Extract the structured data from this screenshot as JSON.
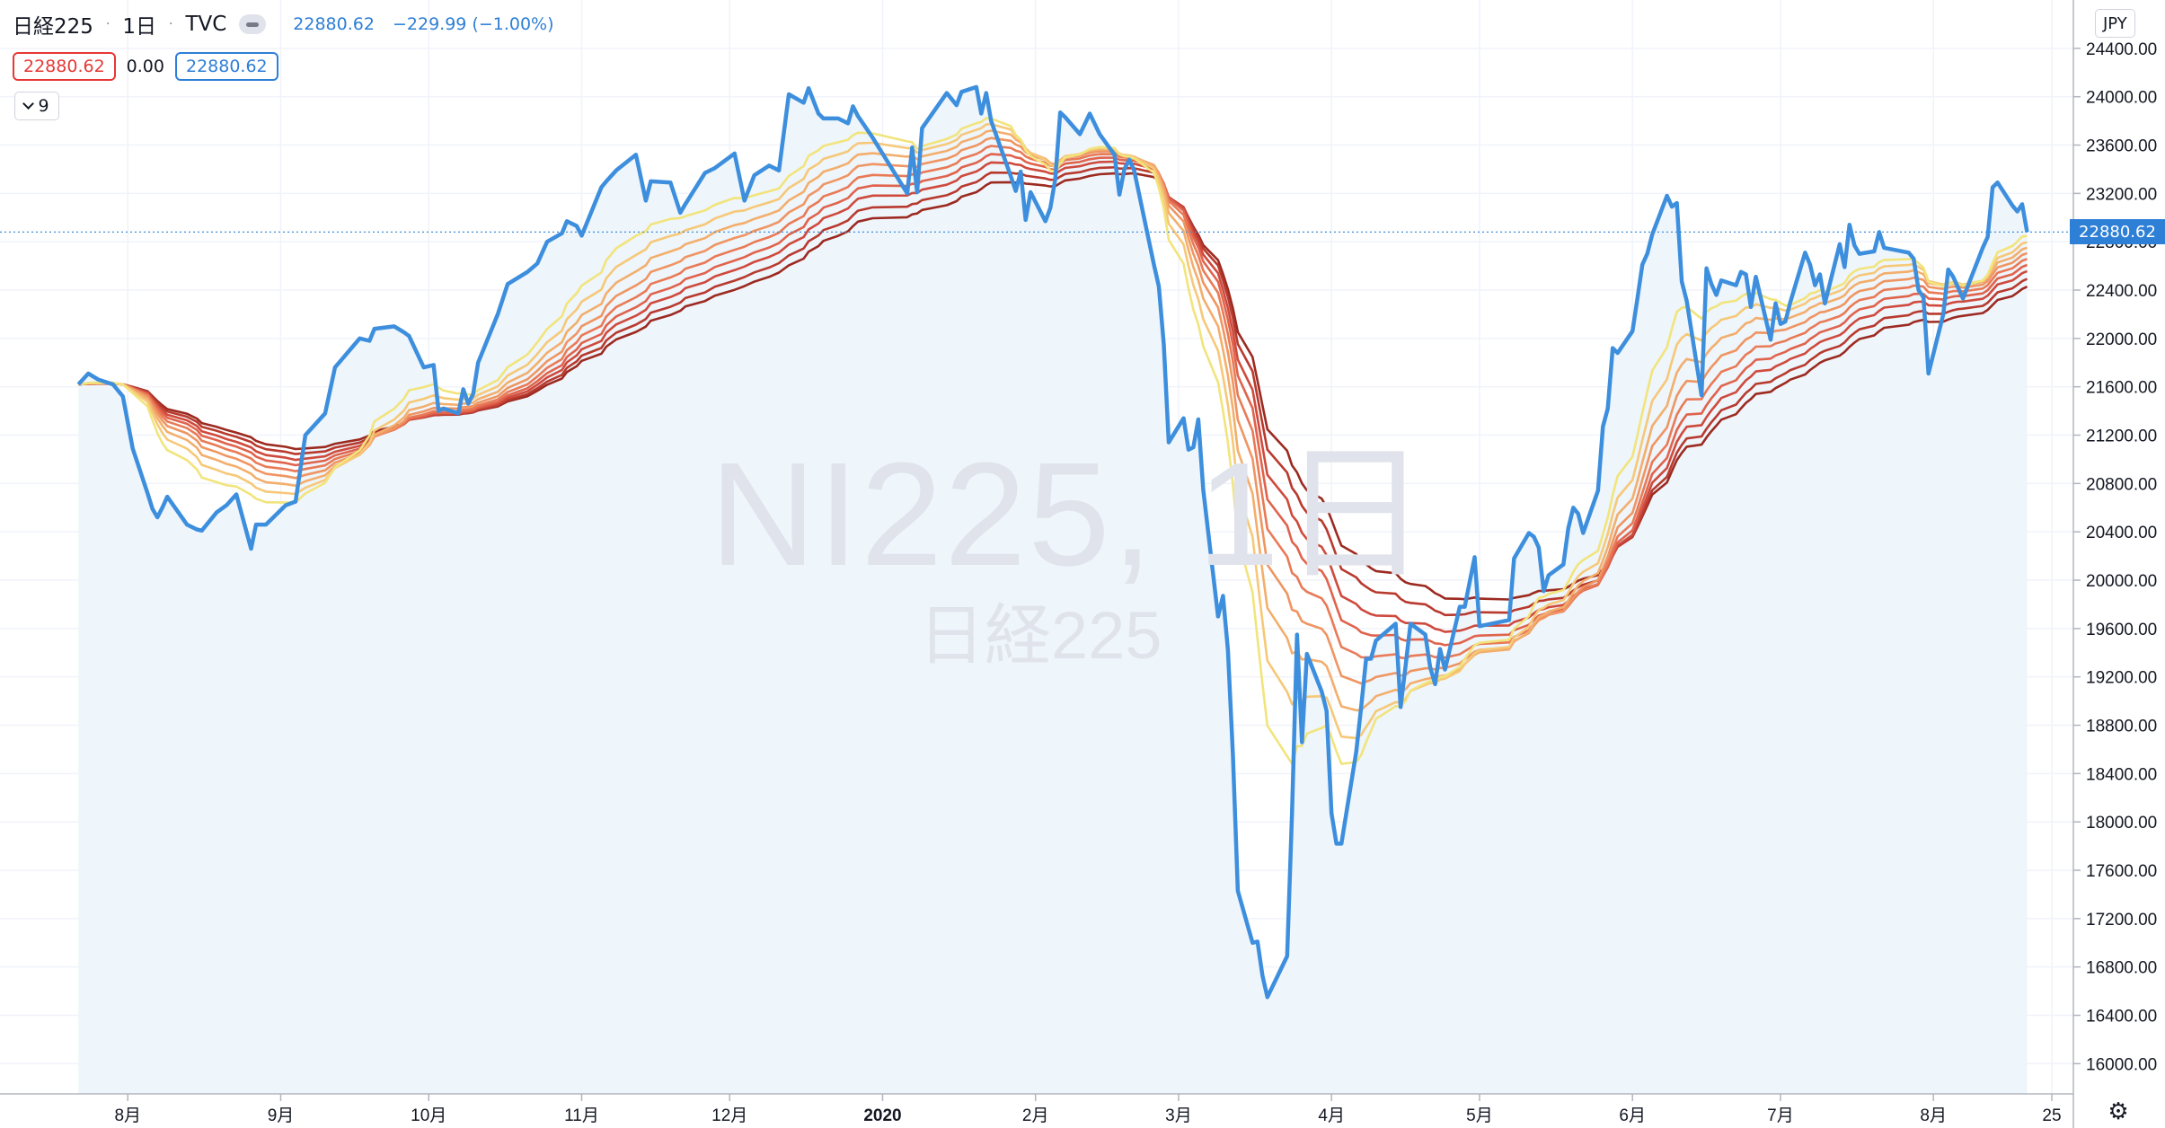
{
  "legend": {
    "symbol": "日経225",
    "interval": "1日",
    "exchange": "TVC",
    "last_price": "22880.62",
    "change": "−229.99 (−1.00%)",
    "indicator_values": [
      "22880.62",
      "0.00",
      "22880.62"
    ],
    "indicator_count": "9"
  },
  "watermark": {
    "main": "NI225, 1日",
    "sub": "日経225"
  },
  "currency": "JPY",
  "price_tag": "22880.62",
  "icons": {
    "eye": "eye-icon",
    "collapse": "chevron-down-icon",
    "settings": "gear-icon"
  },
  "colors": {
    "price_line": "#3d8fde",
    "area_fill": "#eef5fb",
    "ribbon": [
      "#f2e47c",
      "#f6c878",
      "#f3ae6c",
      "#ef9562",
      "#e97a56",
      "#e0634c",
      "#cf4a3d",
      "#b83a2e",
      "#9c2a20"
    ]
  },
  "chart_data": {
    "type": "line",
    "title": "",
    "x_ticks": [
      "8月",
      "9月",
      "10月",
      "11月",
      "12月",
      "2020",
      "2月",
      "3月",
      "4月",
      "5月",
      "6月",
      "7月",
      "8月",
      "25"
    ],
    "y_ticks": [
      16000,
      16400,
      16800,
      17200,
      17600,
      18000,
      18400,
      18800,
      19200,
      19600,
      20000,
      20400,
      20800,
      21200,
      21600,
      22000,
      22400,
      22800,
      23200,
      23600,
      24000,
      24400
    ],
    "ylim": [
      15750,
      24800
    ],
    "grid": true,
    "series": [
      {
        "name": "日経225",
        "points": [
          [
            "2019-07-22",
            21620
          ],
          [
            "2019-07-24",
            21710
          ],
          [
            "2019-07-26",
            21660
          ],
          [
            "2019-07-29",
            21620
          ],
          [
            "2019-07-31",
            21520
          ],
          [
            "2019-08-02",
            21090
          ],
          [
            "2019-08-05",
            20720
          ],
          [
            "2019-08-06",
            20590
          ],
          [
            "2019-08-07",
            20520
          ],
          [
            "2019-08-08",
            20600
          ],
          [
            "2019-08-09",
            20690
          ],
          [
            "2019-08-13",
            20460
          ],
          [
            "2019-08-15",
            20420
          ],
          [
            "2019-08-16",
            20410
          ],
          [
            "2019-08-19",
            20560
          ],
          [
            "2019-08-21",
            20620
          ],
          [
            "2019-08-23",
            20710
          ],
          [
            "2019-08-26",
            20260
          ],
          [
            "2019-08-27",
            20460
          ],
          [
            "2019-08-29",
            20460
          ],
          [
            "2019-09-02",
            20620
          ],
          [
            "2019-09-04",
            20650
          ],
          [
            "2019-09-06",
            21200
          ],
          [
            "2019-09-10",
            21380
          ],
          [
            "2019-09-12",
            21760
          ],
          [
            "2019-09-17",
            22000
          ],
          [
            "2019-09-19",
            21980
          ],
          [
            "2019-09-20",
            22080
          ],
          [
            "2019-09-24",
            22100
          ],
          [
            "2019-09-26",
            22050
          ],
          [
            "2019-09-27",
            22020
          ],
          [
            "2019-09-30",
            21760
          ],
          [
            "2019-10-02",
            21780
          ],
          [
            "2019-10-03",
            21400
          ],
          [
            "2019-10-04",
            21420
          ],
          [
            "2019-10-07",
            21380
          ],
          [
            "2019-10-08",
            21580
          ],
          [
            "2019-10-09",
            21460
          ],
          [
            "2019-10-10",
            21540
          ],
          [
            "2019-10-11",
            21800
          ],
          [
            "2019-10-15",
            22200
          ],
          [
            "2019-10-17",
            22450
          ],
          [
            "2019-10-21",
            22550
          ],
          [
            "2019-10-23",
            22620
          ],
          [
            "2019-10-25",
            22800
          ],
          [
            "2019-10-28",
            22870
          ],
          [
            "2019-10-29",
            22970
          ],
          [
            "2019-10-31",
            22930
          ],
          [
            "2019-11-01",
            22850
          ],
          [
            "2019-11-05",
            23250
          ],
          [
            "2019-11-06",
            23300
          ],
          [
            "2019-11-08",
            23390
          ],
          [
            "2019-11-12",
            23520
          ],
          [
            "2019-11-14",
            23140
          ],
          [
            "2019-11-15",
            23300
          ],
          [
            "2019-11-19",
            23290
          ],
          [
            "2019-11-21",
            23040
          ],
          [
            "2019-11-22",
            23110
          ],
          [
            "2019-11-26",
            23370
          ],
          [
            "2019-11-28",
            23410
          ],
          [
            "2019-12-02",
            23530
          ],
          [
            "2019-12-04",
            23140
          ],
          [
            "2019-12-06",
            23350
          ],
          [
            "2019-12-09",
            23430
          ],
          [
            "2019-12-11",
            23390
          ],
          [
            "2019-12-13",
            24020
          ],
          [
            "2019-12-16",
            23950
          ],
          [
            "2019-12-17",
            24070
          ],
          [
            "2019-12-19",
            23860
          ],
          [
            "2019-12-20",
            23820
          ],
          [
            "2019-12-23",
            23820
          ],
          [
            "2019-12-25",
            23780
          ],
          [
            "2019-12-26",
            23920
          ],
          [
            "2019-12-27",
            23840
          ],
          [
            "2019-12-30",
            23660
          ],
          [
            "2020-01-06",
            23200
          ],
          [
            "2020-01-07",
            23580
          ],
          [
            "2020-01-08",
            23210
          ],
          [
            "2020-01-09",
            23740
          ],
          [
            "2020-01-14",
            24030
          ],
          [
            "2020-01-16",
            23930
          ],
          [
            "2020-01-17",
            24040
          ],
          [
            "2020-01-20",
            24080
          ],
          [
            "2020-01-21",
            23860
          ],
          [
            "2020-01-22",
            24030
          ],
          [
            "2020-01-23",
            23800
          ],
          [
            "2020-01-27",
            23340
          ],
          [
            "2020-01-28",
            23220
          ],
          [
            "2020-01-29",
            23380
          ],
          [
            "2020-01-30",
            22980
          ],
          [
            "2020-01-31",
            23210
          ],
          [
            "2020-02-03",
            22970
          ],
          [
            "2020-02-04",
            23080
          ],
          [
            "2020-02-05",
            23320
          ],
          [
            "2020-02-06",
            23870
          ],
          [
            "2020-02-07",
            23830
          ],
          [
            "2020-02-10",
            23690
          ],
          [
            "2020-02-12",
            23860
          ],
          [
            "2020-02-14",
            23690
          ],
          [
            "2020-02-17",
            23520
          ],
          [
            "2020-02-18",
            23190
          ],
          [
            "2020-02-19",
            23400
          ],
          [
            "2020-02-20",
            23480
          ],
          [
            "2020-02-21",
            23390
          ],
          [
            "2020-02-25",
            22610
          ],
          [
            "2020-02-26",
            22430
          ],
          [
            "2020-02-27",
            21950
          ],
          [
            "2020-02-28",
            21140
          ],
          [
            "2020-03-02",
            21340
          ],
          [
            "2020-03-03",
            21080
          ],
          [
            "2020-03-04",
            21100
          ],
          [
            "2020-03-05",
            21330
          ],
          [
            "2020-03-06",
            20750
          ],
          [
            "2020-03-09",
            19700
          ],
          [
            "2020-03-10",
            19870
          ],
          [
            "2020-03-11",
            19420
          ],
          [
            "2020-03-12",
            18560
          ],
          [
            "2020-03-13",
            17430
          ],
          [
            "2020-03-16",
            17000
          ],
          [
            "2020-03-17",
            17010
          ],
          [
            "2020-03-18",
            16730
          ],
          [
            "2020-03-19",
            16550
          ],
          [
            "2020-03-23",
            16890
          ],
          [
            "2020-03-24",
            18090
          ],
          [
            "2020-03-25",
            19550
          ],
          [
            "2020-03-26",
            18660
          ],
          [
            "2020-03-27",
            19390
          ],
          [
            "2020-03-30",
            19080
          ],
          [
            "2020-03-31",
            18920
          ],
          [
            "2020-04-01",
            18070
          ],
          [
            "2020-04-02",
            17820
          ],
          [
            "2020-04-03",
            17820
          ],
          [
            "2020-04-06",
            18580
          ],
          [
            "2020-04-07",
            18950
          ],
          [
            "2020-04-08",
            19350
          ],
          [
            "2020-04-09",
            19350
          ],
          [
            "2020-04-10",
            19500
          ],
          [
            "2020-04-14",
            19640
          ],
          [
            "2020-04-15",
            18950
          ],
          [
            "2020-04-16",
            19290
          ],
          [
            "2020-04-17",
            19640
          ],
          [
            "2020-04-20",
            19550
          ],
          [
            "2020-04-21",
            19280
          ],
          [
            "2020-04-22",
            19140
          ],
          [
            "2020-04-23",
            19430
          ],
          [
            "2020-04-24",
            19260
          ],
          [
            "2020-04-27",
            19780
          ],
          [
            "2020-04-28",
            19780
          ],
          [
            "2020-04-30",
            20190
          ],
          [
            "2020-05-01",
            19620
          ],
          [
            "2020-05-07",
            19670
          ],
          [
            "2020-05-08",
            20180
          ],
          [
            "2020-05-11",
            20390
          ],
          [
            "2020-05-12",
            20360
          ],
          [
            "2020-05-13",
            20270
          ],
          [
            "2020-05-14",
            19910
          ],
          [
            "2020-05-15",
            20040
          ],
          [
            "2020-05-18",
            20130
          ],
          [
            "2020-05-19",
            20430
          ],
          [
            "2020-05-20",
            20600
          ],
          [
            "2020-05-21",
            20550
          ],
          [
            "2020-05-22",
            20390
          ],
          [
            "2020-05-25",
            20740
          ],
          [
            "2020-05-26",
            21270
          ],
          [
            "2020-05-27",
            21420
          ],
          [
            "2020-05-28",
            21920
          ],
          [
            "2020-05-29",
            21880
          ],
          [
            "2020-06-01",
            22060
          ],
          [
            "2020-06-02",
            22330
          ],
          [
            "2020-06-03",
            22610
          ],
          [
            "2020-06-04",
            22700
          ],
          [
            "2020-06-05",
            22860
          ],
          [
            "2020-06-08",
            23180
          ],
          [
            "2020-06-09",
            23090
          ],
          [
            "2020-06-10",
            23120
          ],
          [
            "2020-06-11",
            22470
          ],
          [
            "2020-06-12",
            22310
          ],
          [
            "2020-06-15",
            21530
          ],
          [
            "2020-06-16",
            22580
          ],
          [
            "2020-06-17",
            22450
          ],
          [
            "2020-06-18",
            22360
          ],
          [
            "2020-06-19",
            22480
          ],
          [
            "2020-06-22",
            22440
          ],
          [
            "2020-06-23",
            22550
          ],
          [
            "2020-06-24",
            22530
          ],
          [
            "2020-06-25",
            22260
          ],
          [
            "2020-06-26",
            22510
          ],
          [
            "2020-06-29",
            21990
          ],
          [
            "2020-06-30",
            22290
          ],
          [
            "2020-07-01",
            22120
          ],
          [
            "2020-07-02",
            22140
          ],
          [
            "2020-07-03",
            22300
          ],
          [
            "2020-07-06",
            22710
          ],
          [
            "2020-07-07",
            22610
          ],
          [
            "2020-07-08",
            22440
          ],
          [
            "2020-07-09",
            22530
          ],
          [
            "2020-07-10",
            22290
          ],
          [
            "2020-07-13",
            22780
          ],
          [
            "2020-07-14",
            22590
          ],
          [
            "2020-07-15",
            22940
          ],
          [
            "2020-07-16",
            22770
          ],
          [
            "2020-07-17",
            22700
          ],
          [
            "2020-07-20",
            22720
          ],
          [
            "2020-07-21",
            22880
          ],
          [
            "2020-07-22",
            22750
          ],
          [
            "2020-07-27",
            22710
          ],
          [
            "2020-07-28",
            22660
          ],
          [
            "2020-07-29",
            22400
          ],
          [
            "2020-07-30",
            22340
          ],
          [
            "2020-07-31",
            21710
          ],
          [
            "2020-08-03",
            22200
          ],
          [
            "2020-08-04",
            22570
          ],
          [
            "2020-08-05",
            22510
          ],
          [
            "2020-08-06",
            22420
          ],
          [
            "2020-08-07",
            22330
          ],
          [
            "2020-08-11",
            22750
          ],
          [
            "2020-08-12",
            22840
          ],
          [
            "2020-08-13",
            23250
          ],
          [
            "2020-08-14",
            23290
          ],
          [
            "2020-08-17",
            23100
          ],
          [
            "2020-08-18",
            23050
          ],
          [
            "2020-08-19",
            23110
          ],
          [
            "2020-08-20",
            22880
          ]
        ]
      }
    ]
  }
}
